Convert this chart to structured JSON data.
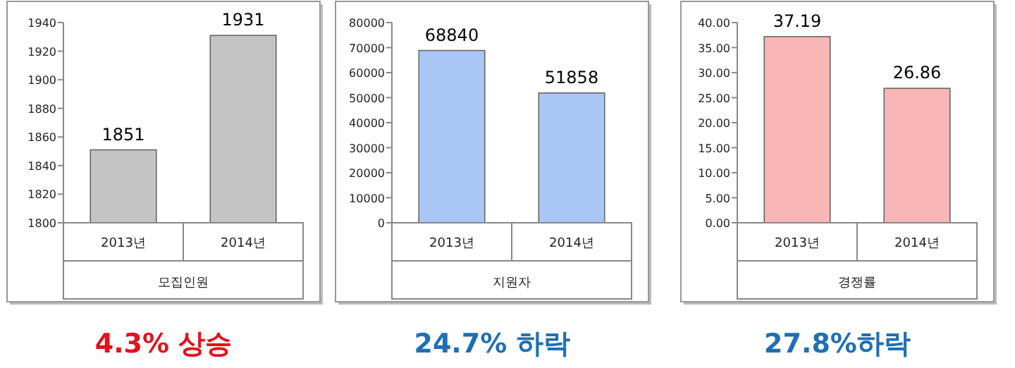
{
  "chart_data": [
    {
      "type": "bar",
      "categories": [
        "2013년",
        "2014년"
      ],
      "xlabel": "모집인원",
      "values": [
        1851,
        1931
      ],
      "color": "#c4c4c4",
      "data_labels": true,
      "ylim": [
        1800,
        1940
      ],
      "yticks": [
        1800,
        1820,
        1840,
        1860,
        1880,
        1900,
        1920,
        1940
      ],
      "annotations": [
        "4.3% 상승"
      ]
    },
    {
      "type": "bar",
      "categories": [
        "2013년",
        "2014년"
      ],
      "xlabel": "지원자",
      "values": [
        68840,
        51858
      ],
      "color": "#aac6f6",
      "data_labels": true,
      "ylim": [
        0,
        80000
      ],
      "yticks": [
        0,
        10000,
        20000,
        30000,
        40000,
        50000,
        60000,
        70000,
        80000
      ],
      "annotations": [
        "24.7% 하락"
      ]
    },
    {
      "type": "bar",
      "categories": [
        "2013년",
        "2014년"
      ],
      "xlabel": "경쟁률",
      "values": [
        37.19,
        26.86
      ],
      "color": "#f8b6b6",
      "data_labels": true,
      "ylim": [
        0,
        40
      ],
      "yticks": [
        {
          "value": 0,
          "label": "0.00"
        },
        {
          "value": 5,
          "label": "5.00"
        },
        {
          "value": 10,
          "label": "10.00"
        },
        {
          "value": 15,
          "label": "15.00"
        },
        {
          "value": 20,
          "label": "20.00"
        },
        {
          "value": 25,
          "label": "25.00"
        },
        {
          "value": 30,
          "label": "30.00"
        },
        {
          "value": 35,
          "label": "35.00"
        },
        {
          "value": 40,
          "label": "40.00"
        }
      ],
      "annotations": [
        "27.8%하락"
      ]
    }
  ]
}
